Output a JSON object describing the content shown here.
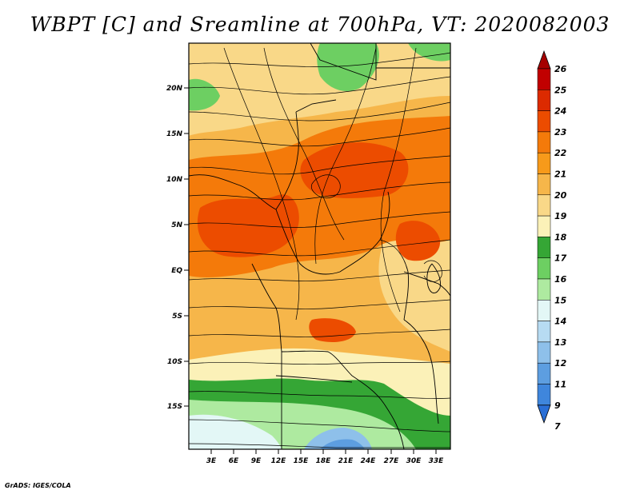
{
  "title": "WBPT [C] and Sreamline at 700hPa, VT: 2020082003",
  "credit": "GrADS: IGES/COLA",
  "map": {
    "lat_ticks": [
      "20N",
      "15N",
      "10N",
      "5N",
      "EQ",
      "5S",
      "10S",
      "15S"
    ],
    "lon_ticks": [
      "3E",
      "6E",
      "9E",
      "12E",
      "15E",
      "18E",
      "21E",
      "24E",
      "27E",
      "30E",
      "33E"
    ]
  },
  "colorbar": {
    "labels": [
      "26",
      "25",
      "24",
      "23",
      "22",
      "21",
      "20",
      "19",
      "18",
      "17",
      "16",
      "15",
      "14",
      "13",
      "12",
      "11",
      "9",
      "7"
    ],
    "colors": [
      "#a50000",
      "#c10000",
      "#dc2a00",
      "#ec4c00",
      "#f47a0a",
      "#f79a1a",
      "#f6b64a",
      "#f9d888",
      "#fbf1b8",
      "#35a635",
      "#6dcf62",
      "#aeeaa0",
      "#e3f7f6",
      "#b7dbf2",
      "#8ec0ea",
      "#5d9ee0",
      "#3f86dc",
      "#2a6fd6"
    ]
  }
}
